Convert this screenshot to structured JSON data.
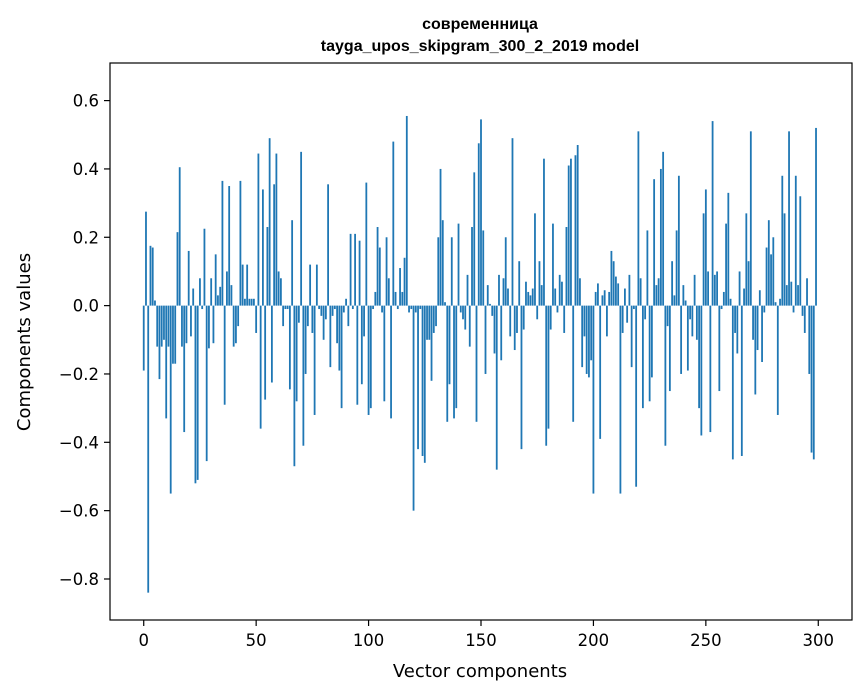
{
  "chart_data": {
    "type": "bar",
    "title_line1": "современница",
    "title_line2": "tayga_upos_skipgram_300_2_2019 model",
    "xlabel": "Vector components",
    "ylabel": "Components values",
    "xlim": [
      -15,
      315
    ],
    "ylim": [
      -0.92,
      0.71
    ],
    "xticks": [
      0,
      50,
      100,
      150,
      200,
      250,
      300
    ],
    "xtick_labels": [
      "0",
      "50",
      "100",
      "150",
      "200",
      "250",
      "300"
    ],
    "yticks": [
      -0.8,
      -0.6,
      -0.4,
      -0.2,
      0.0,
      0.2,
      0.4,
      0.6
    ],
    "ytick_labels": [
      "−0.8",
      "−0.6",
      "−0.4",
      "−0.2",
      "0.0",
      "0.2",
      "0.4",
      "0.6"
    ],
    "bar_color": "#1f77b4",
    "values": [
      -0.19,
      0.275,
      -0.84,
      0.175,
      0.17,
      0.015,
      -0.12,
      -0.215,
      -0.12,
      -0.1,
      -0.33,
      -0.12,
      -0.55,
      -0.17,
      -0.17,
      0.215,
      0.405,
      -0.12,
      -0.37,
      -0.11,
      0.16,
      -0.09,
      0.05,
      -0.52,
      -0.51,
      0.08,
      -0.01,
      0.225,
      -0.455,
      -0.125,
      0.08,
      -0.11,
      0.15,
      0.03,
      0.055,
      0.365,
      -0.29,
      0.1,
      0.35,
      0.06,
      -0.12,
      -0.11,
      -0.06,
      0.365,
      0.12,
      0.02,
      0.12,
      0.02,
      0.02,
      0.02,
      -0.08,
      0.445,
      -0.36,
      0.34,
      -0.275,
      0.23,
      0.49,
      -0.225,
      0.355,
      0.445,
      0.1,
      0.08,
      -0.06,
      -0.01,
      -0.01,
      -0.245,
      0.25,
      -0.47,
      -0.28,
      -0.05,
      0.45,
      -0.41,
      -0.2,
      -0.06,
      0.12,
      -0.08,
      -0.32,
      0.12,
      -0.01,
      -0.03,
      -0.1,
      -0.04,
      0.355,
      -0.18,
      -0.03,
      -0.01,
      -0.11,
      -0.19,
      -0.3,
      -0.02,
      0.02,
      -0.06,
      0.21,
      -0.01,
      0.21,
      -0.29,
      0.19,
      -0.23,
      -0.09,
      0.36,
      -0.32,
      -0.3,
      -0.01,
      0.04,
      0.23,
      0.17,
      -0.02,
      -0.28,
      0.2,
      0.08,
      -0.33,
      0.48,
      0.04,
      -0.01,
      0.11,
      0.04,
      0.14,
      0.555,
      -0.02,
      -0.01,
      -0.6,
      -0.02,
      -0.42,
      -0.01,
      -0.44,
      -0.46,
      -0.1,
      -0.1,
      -0.22,
      -0.08,
      -0.06,
      0.2,
      0.4,
      0.25,
      0.01,
      -0.34,
      -0.23,
      0.2,
      -0.33,
      -0.3,
      0.24,
      -0.02,
      -0.04,
      -0.07,
      0.09,
      -0.12,
      0.23,
      0.39,
      -0.34,
      0.475,
      0.545,
      0.22,
      -0.2,
      0.06,
      0.005,
      -0.03,
      -0.14,
      -0.48,
      0.09,
      -0.16,
      0.08,
      0.2,
      0.05,
      -0.09,
      0.49,
      -0.13,
      -0.08,
      0.13,
      -0.42,
      -0.07,
      0.07,
      0.04,
      0.03,
      0.05,
      0.27,
      -0.04,
      0.13,
      0.06,
      0.43,
      -0.41,
      -0.36,
      -0.07,
      0.24,
      0.05,
      -0.02,
      0.09,
      0.07,
      -0.08,
      0.23,
      0.41,
      0.43,
      -0.34,
      0.44,
      0.47,
      0.08,
      -0.18,
      -0.09,
      -0.2,
      -0.21,
      -0.16,
      -0.55,
      0.04,
      0.065,
      -0.39,
      0.03,
      0.045,
      -0.09,
      0.04,
      0.16,
      0.13,
      0.085,
      0.065,
      -0.55,
      -0.08,
      0.05,
      -0.05,
      0.09,
      -0.18,
      -0.01,
      -0.53,
      0.51,
      0.08,
      -0.3,
      -0.04,
      0.22,
      -0.28,
      -0.21,
      0.37,
      0.06,
      0.08,
      0.4,
      0.45,
      -0.41,
      -0.06,
      -0.25,
      0.13,
      0.03,
      0.22,
      0.38,
      -0.2,
      0.06,
      0.015,
      -0.19,
      -0.04,
      -0.09,
      0.09,
      -0.1,
      -0.3,
      -0.38,
      0.27,
      0.34,
      0.1,
      -0.37,
      0.54,
      0.09,
      0.1,
      -0.25,
      -0.01,
      0.04,
      0.24,
      0.33,
      0.02,
      -0.45,
      -0.08,
      -0.14,
      0.1,
      -0.44,
      0.05,
      0.27,
      0.13,
      0.51,
      -0.1,
      -0.26,
      -0.13,
      0.045,
      -0.165,
      -0.02,
      0.17,
      0.25,
      0.15,
      0.2,
      0.01,
      -0.32,
      0.02,
      0.38,
      0.27,
      0.06,
      0.51,
      0.07,
      -0.02,
      0.38,
      0.06,
      0.32,
      -0.03,
      -0.08,
      0.08,
      -0.2,
      -0.43,
      -0.45,
      0.52
    ]
  }
}
